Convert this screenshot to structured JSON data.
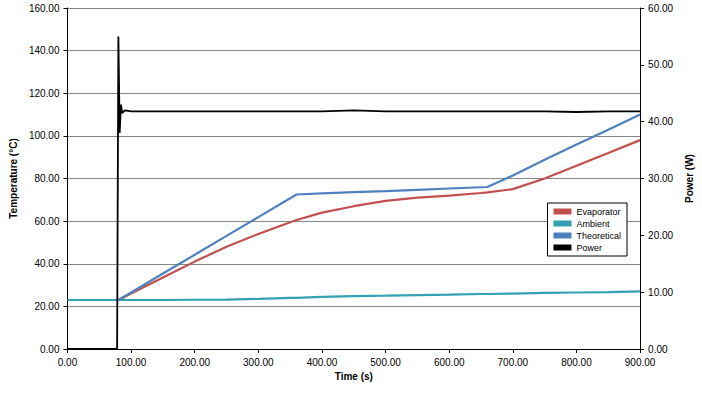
{
  "chart_data": {
    "type": "line",
    "x_label": "Time (s)",
    "y_label": "Temperature (°C)",
    "y2_label": "Power (W)",
    "x": [
      0,
      75,
      78,
      80,
      82,
      84,
      86,
      90,
      100,
      150,
      200,
      250,
      300,
      350,
      360,
      400,
      450,
      500,
      550,
      600,
      650,
      660,
      700,
      750,
      800,
      850,
      900
    ],
    "series": [
      {
        "name": "Evaporator",
        "color": "#c0504d",
        "values": [
          null,
          null,
          null,
          23,
          23.3,
          23.5,
          23.8,
          24.5,
          26,
          33.5,
          41,
          48,
          54,
          59.5,
          60.5,
          64,
          67,
          69.5,
          71,
          72,
          73.2,
          73.5,
          75,
          80,
          86,
          92,
          98
        ]
      },
      {
        "name": "Ambient",
        "color": "#31a1b3",
        "values": [
          23,
          23,
          23,
          23,
          23,
          23,
          23,
          23,
          23,
          23,
          23.1,
          23.2,
          23.5,
          24,
          24,
          24.5,
          24.8,
          25,
          25.3,
          25.5,
          25.8,
          25.8,
          26,
          26.3,
          26.5,
          26.7,
          27
        ]
      },
      {
        "name": "Theoretical",
        "color": "#4f81bd",
        "values": [
          null,
          null,
          null,
          23,
          23.4,
          23.7,
          24.1,
          24.8,
          26.5,
          35.4,
          44.2,
          53.1,
          61.9,
          70.7,
          72.5,
          73,
          73.6,
          74.1,
          74.7,
          75.3,
          75.9,
          76,
          81.4,
          88.8,
          95.9,
          102.9,
          110
        ]
      },
      {
        "name": "Power",
        "color": "#000000",
        "axis": "y2",
        "values": [
          0,
          0,
          0,
          55,
          38,
          43,
          41.5,
          42,
          41.8,
          41.8,
          41.8,
          41.8,
          41.8,
          41.8,
          41.8,
          41.8,
          42,
          41.8,
          41.8,
          41.8,
          41.8,
          41.8,
          41.8,
          41.8,
          41.7,
          41.8,
          41.8
        ]
      }
    ],
    "xlim": [
      0,
      900
    ],
    "xticks": [
      {
        "value": 0,
        "label": "0.00"
      },
      {
        "value": 100,
        "label": "100.00"
      },
      {
        "value": 200,
        "label": "200.00"
      },
      {
        "value": 300,
        "label": "300.00"
      },
      {
        "value": 400,
        "label": "400.00"
      },
      {
        "value": 500,
        "label": "500.00"
      },
      {
        "value": 600,
        "label": "600.00"
      },
      {
        "value": 700,
        "label": "700.00"
      },
      {
        "value": 800,
        "label": "800.00"
      },
      {
        "value": 900,
        "label": "900.00"
      }
    ],
    "ylim": [
      0,
      160
    ],
    "yticks": [
      {
        "value": 0,
        "label": "0.00"
      },
      {
        "value": 20,
        "label": "20.00"
      },
      {
        "value": 40,
        "label": "40.00"
      },
      {
        "value": 60,
        "label": "60.00"
      },
      {
        "value": 80,
        "label": "80.00"
      },
      {
        "value": 100,
        "label": "100.00"
      },
      {
        "value": 120,
        "label": "120.00"
      },
      {
        "value": 140,
        "label": "140.00"
      },
      {
        "value": 160,
        "label": "160.00"
      }
    ],
    "y2lim": [
      0,
      60
    ],
    "y2ticks": [
      {
        "value": 0,
        "label": "0.00"
      },
      {
        "value": 10,
        "label": "10.00"
      },
      {
        "value": 20,
        "label": "20.00"
      },
      {
        "value": 30,
        "label": "30.00"
      },
      {
        "value": 40,
        "label": "40.00"
      },
      {
        "value": 50,
        "label": "50.00"
      },
      {
        "value": 60,
        "label": "60.00"
      }
    ],
    "grid": true,
    "legend": "right"
  }
}
